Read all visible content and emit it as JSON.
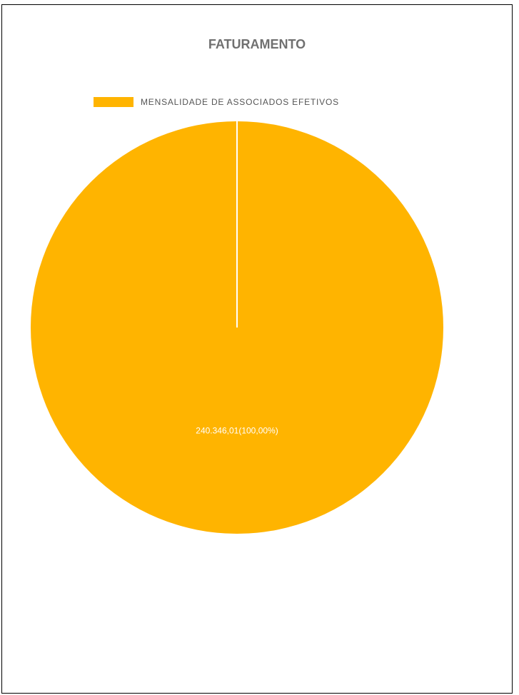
{
  "chart_data": {
    "type": "pie",
    "title": "FATURAMENTO",
    "legend": {
      "placement": "top-left",
      "entries": [
        "MENSALIDADE DE ASSOCIADOS EFETIVOS"
      ]
    },
    "slices": [
      {
        "label": "MENSALIDADE DE ASSOCIADOS EFETIVOS",
        "value": 240346.01,
        "percent": 100.0,
        "data_label": "240.346,01(100,00%)",
        "color": "#FFB400"
      }
    ]
  }
}
